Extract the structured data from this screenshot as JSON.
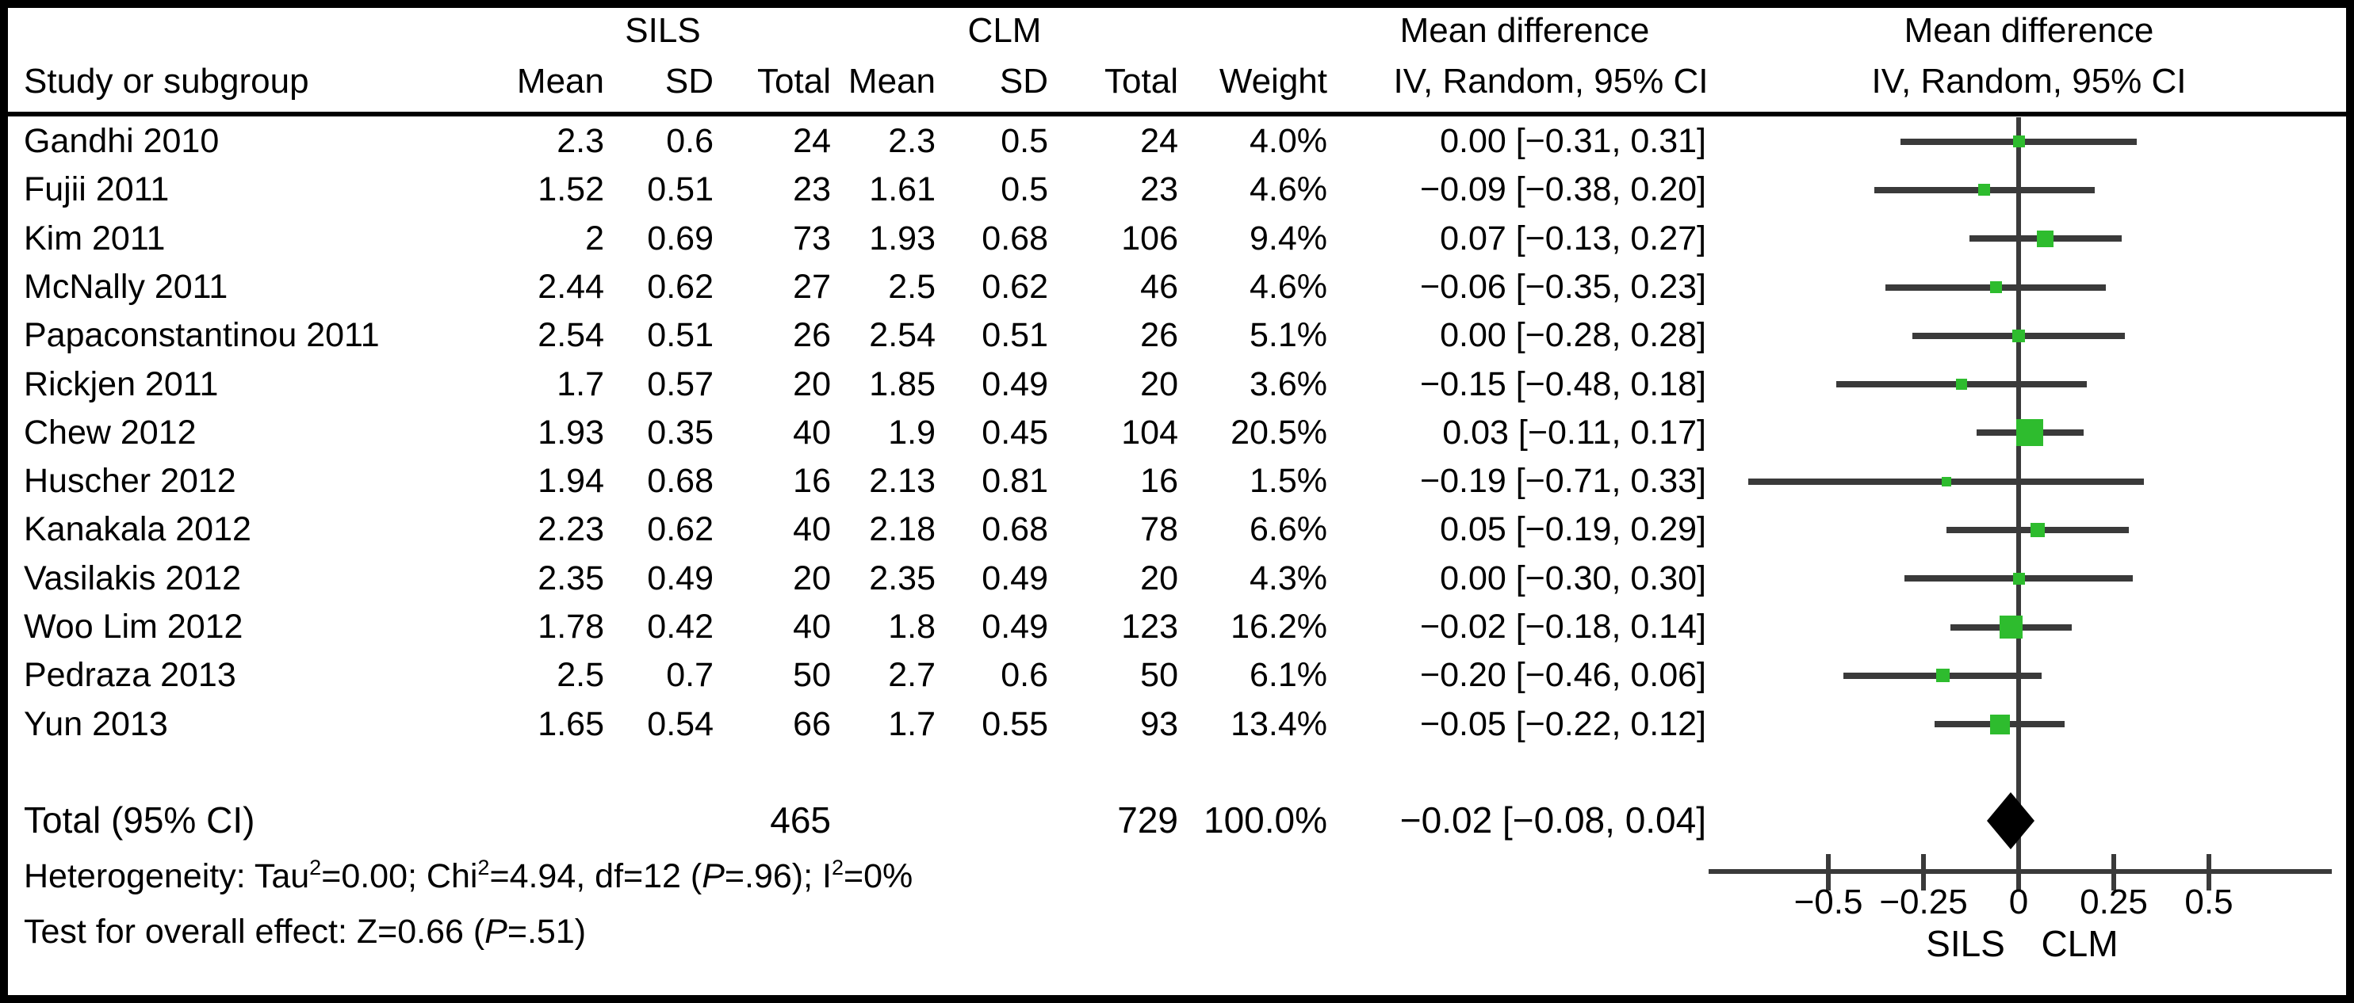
{
  "header": {
    "study_col": "Study or subgroup",
    "group1": "SILS",
    "group2": "CLM",
    "cols": {
      "mean1": "Mean",
      "sd1": "SD",
      "total1": "Total",
      "mean2": "Mean",
      "sd2": "SD",
      "total2": "Total",
      "weight": "Weight"
    },
    "md_left_line1": "Mean difference",
    "md_left_line2": "IV, Random, 95% CI",
    "md_right_line1": "Mean difference",
    "md_right_line2": "IV, Random, 95% CI"
  },
  "chart_data": {
    "type": "forest",
    "variant": "mean-difference, inverse-variance random-effects",
    "title": "Mean difference IV, Random, 95% CI (SILS vs CLM)",
    "x_axis": {
      "ticks": [
        -0.5,
        -0.25,
        0,
        0.25,
        0.5
      ],
      "tick_labels": [
        "−0.5",
        "−0.25",
        "0",
        "0.25",
        "0.5"
      ],
      "range": [
        -0.82,
        0.82
      ],
      "left_label": "SILS",
      "right_label": "CLM"
    },
    "studies": [
      {
        "name": "Gandhi 2010",
        "sils_mean": "2.3",
        "sils_sd": "0.6",
        "sils_total": "24",
        "clm_mean": "2.3",
        "clm_sd": "0.5",
        "clm_total": "24",
        "weight": "4.0%",
        "ci_text": "0.00 [−0.31, 0.31]",
        "md": 0.0,
        "lo": -0.31,
        "hi": 0.31,
        "weight_num": 4.0
      },
      {
        "name": "Fujii 2011",
        "sils_mean": "1.52",
        "sils_sd": "0.51",
        "sils_total": "23",
        "clm_mean": "1.61",
        "clm_sd": "0.5",
        "clm_total": "23",
        "weight": "4.6%",
        "ci_text": "−0.09 [−0.38, 0.20]",
        "md": -0.09,
        "lo": -0.38,
        "hi": 0.2,
        "weight_num": 4.6
      },
      {
        "name": "Kim 2011",
        "sils_mean": "2",
        "sils_sd": "0.69",
        "sils_total": "73",
        "clm_mean": "1.93",
        "clm_sd": "0.68",
        "clm_total": "106",
        "weight": "9.4%",
        "ci_text": "0.07 [−0.13, 0.27]",
        "md": 0.07,
        "lo": -0.13,
        "hi": 0.27,
        "weight_num": 9.4
      },
      {
        "name": "McNally 2011",
        "sils_mean": "2.44",
        "sils_sd": "0.62",
        "sils_total": "27",
        "clm_mean": "2.5",
        "clm_sd": "0.62",
        "clm_total": "46",
        "weight": "4.6%",
        "ci_text": "−0.06 [−0.35, 0.23]",
        "md": -0.06,
        "lo": -0.35,
        "hi": 0.23,
        "weight_num": 4.6
      },
      {
        "name": "Papaconstantinou 2011",
        "sils_mean": "2.54",
        "sils_sd": "0.51",
        "sils_total": "26",
        "clm_mean": "2.54",
        "clm_sd": "0.51",
        "clm_total": "26",
        "weight": "5.1%",
        "ci_text": "0.00 [−0.28, 0.28]",
        "md": 0.0,
        "lo": -0.28,
        "hi": 0.28,
        "weight_num": 5.1
      },
      {
        "name": "Rickjen 2011",
        "sils_mean": "1.7",
        "sils_sd": "0.57",
        "sils_total": "20",
        "clm_mean": "1.85",
        "clm_sd": "0.49",
        "clm_total": "20",
        "weight": "3.6%",
        "ci_text": "−0.15 [−0.48, 0.18]",
        "md": -0.15,
        "lo": -0.48,
        "hi": 0.18,
        "weight_num": 3.6
      },
      {
        "name": "Chew 2012",
        "sils_mean": "1.93",
        "sils_sd": "0.35",
        "sils_total": "40",
        "clm_mean": "1.9",
        "clm_sd": "0.45",
        "clm_total": "104",
        "weight": "20.5%",
        "ci_text": "0.03 [−0.11, 0.17]",
        "md": 0.03,
        "lo": -0.11,
        "hi": 0.17,
        "weight_num": 20.5
      },
      {
        "name": "Huscher 2012",
        "sils_mean": "1.94",
        "sils_sd": "0.68",
        "sils_total": "16",
        "clm_mean": "2.13",
        "clm_sd": "0.81",
        "clm_total": "16",
        "weight": "1.5%",
        "ci_text": "−0.19 [−0.71, 0.33]",
        "md": -0.19,
        "lo": -0.71,
        "hi": 0.33,
        "weight_num": 1.5
      },
      {
        "name": "Kanakala 2012",
        "sils_mean": "2.23",
        "sils_sd": "0.62",
        "sils_total": "40",
        "clm_mean": "2.18",
        "clm_sd": "0.68",
        "clm_total": "78",
        "weight": "6.6%",
        "ci_text": "0.05 [−0.19, 0.29]",
        "md": 0.05,
        "lo": -0.19,
        "hi": 0.29,
        "weight_num": 6.6
      },
      {
        "name": "Vasilakis 2012",
        "sils_mean": "2.35",
        "sils_sd": "0.49",
        "sils_total": "20",
        "clm_mean": "2.35",
        "clm_sd": "0.49",
        "clm_total": "20",
        "weight": "4.3%",
        "ci_text": "0.00 [−0.30, 0.30]",
        "md": 0.0,
        "lo": -0.3,
        "hi": 0.3,
        "weight_num": 4.3
      },
      {
        "name": "Woo Lim 2012",
        "sils_mean": "1.78",
        "sils_sd": "0.42",
        "sils_total": "40",
        "clm_mean": "1.8",
        "clm_sd": "0.49",
        "clm_total": "123",
        "weight": "16.2%",
        "ci_text": "−0.02 [−0.18, 0.14]",
        "md": -0.02,
        "lo": -0.18,
        "hi": 0.14,
        "weight_num": 16.2
      },
      {
        "name": "Pedraza 2013",
        "sils_mean": "2.5",
        "sils_sd": "0.7",
        "sils_total": "50",
        "clm_mean": "2.7",
        "clm_sd": "0.6",
        "clm_total": "50",
        "weight": "6.1%",
        "ci_text": "−0.20 [−0.46, 0.06]",
        "md": -0.2,
        "lo": -0.46,
        "hi": 0.06,
        "weight_num": 6.1
      },
      {
        "name": "Yun 2013",
        "sils_mean": "1.65",
        "sils_sd": "0.54",
        "sils_total": "66",
        "clm_mean": "1.7",
        "clm_sd": "0.55",
        "clm_total": "93",
        "weight": "13.4%",
        "ci_text": "−0.05 [−0.22, 0.12]",
        "md": -0.05,
        "lo": -0.22,
        "hi": 0.12,
        "weight_num": 13.4
      }
    ],
    "total": {
      "label": "Total (95% CI)",
      "sils_total": "465",
      "clm_total": "729",
      "weight": "100.0%",
      "ci_text": "−0.02 [−0.08, 0.04]",
      "md": -0.02,
      "lo": -0.08,
      "hi": 0.04
    }
  },
  "footnotes": {
    "heterogeneity_segments": [
      {
        "t": "Heterogeneity: Tau"
      },
      {
        "sup": "2"
      },
      {
        "t": "=0.00; Chi"
      },
      {
        "sup": "2"
      },
      {
        "t": "=4.94, df=12 ("
      },
      {
        "i": "P"
      },
      {
        "t": "=.96); I"
      },
      {
        "sup": "2"
      },
      {
        "t": "=0%"
      }
    ],
    "overall_effect_segments": [
      {
        "t": "Test for overall effect: Z=0.66 ("
      },
      {
        "i": "P"
      },
      {
        "t": "=.51)"
      }
    ]
  },
  "colors": {
    "marker_green": "#2ebc2e",
    "ci_line": "#3a3a3a",
    "diamond": "#000000",
    "border": "#000000"
  }
}
